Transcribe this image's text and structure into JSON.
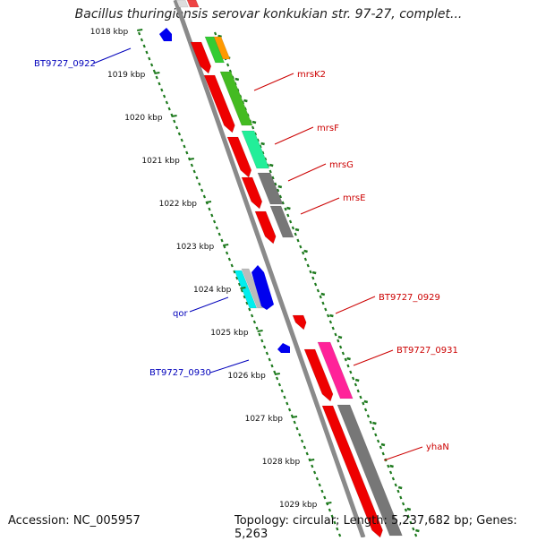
{
  "title": "Bacillus thuringiensis serovar konkukian str. 97-27, complet...",
  "footer": {
    "accession": "Accession: NC_005957",
    "topology": "Topology: circular; Length: 5,237,682 bp; Genes: 5,263"
  },
  "colors": {
    "ruler": "#1e7a1e",
    "backbone": "#8a8a8a",
    "gene_forward": "#ee0000",
    "gene_reverse": "#0000ee",
    "label_red": "#cc0000",
    "label_blue": "#0000bb"
  },
  "kbp_ticks": [
    {
      "label": "1018 kbp",
      "kbp": 1018
    },
    {
      "label": "1019 kbp",
      "kbp": 1019
    },
    {
      "label": "1020 kbp",
      "kbp": 1020
    },
    {
      "label": "1021 kbp",
      "kbp": 1021
    },
    {
      "label": "1022 kbp",
      "kbp": 1022
    },
    {
      "label": "1023 kbp",
      "kbp": 1023
    },
    {
      "label": "1024 kbp",
      "kbp": 1024
    },
    {
      "label": "1025 kbp",
      "kbp": 1025
    },
    {
      "label": "1026 kbp",
      "kbp": 1026
    },
    {
      "label": "1027 kbp",
      "kbp": 1027
    },
    {
      "label": "1028 kbp",
      "kbp": 1028
    },
    {
      "label": "1029 kbp",
      "kbp": 1029
    }
  ],
  "gene_labels": [
    {
      "text": "BT9727_0922",
      "color": "#0000bb"
    },
    {
      "text": "mrsK2",
      "color": "#cc0000"
    },
    {
      "text": "mrsF",
      "color": "#cc0000"
    },
    {
      "text": "mrsG",
      "color": "#cc0000"
    },
    {
      "text": "mrsE",
      "color": "#cc0000"
    },
    {
      "text": "qor",
      "color": "#0000bb"
    },
    {
      "text": "BT9727_0929",
      "color": "#cc0000"
    },
    {
      "text": "BT9727_0930",
      "color": "#0000bb"
    },
    {
      "text": "BT9727_0931",
      "color": "#cc0000"
    },
    {
      "text": "yhaN",
      "color": "#cc0000"
    }
  ]
}
